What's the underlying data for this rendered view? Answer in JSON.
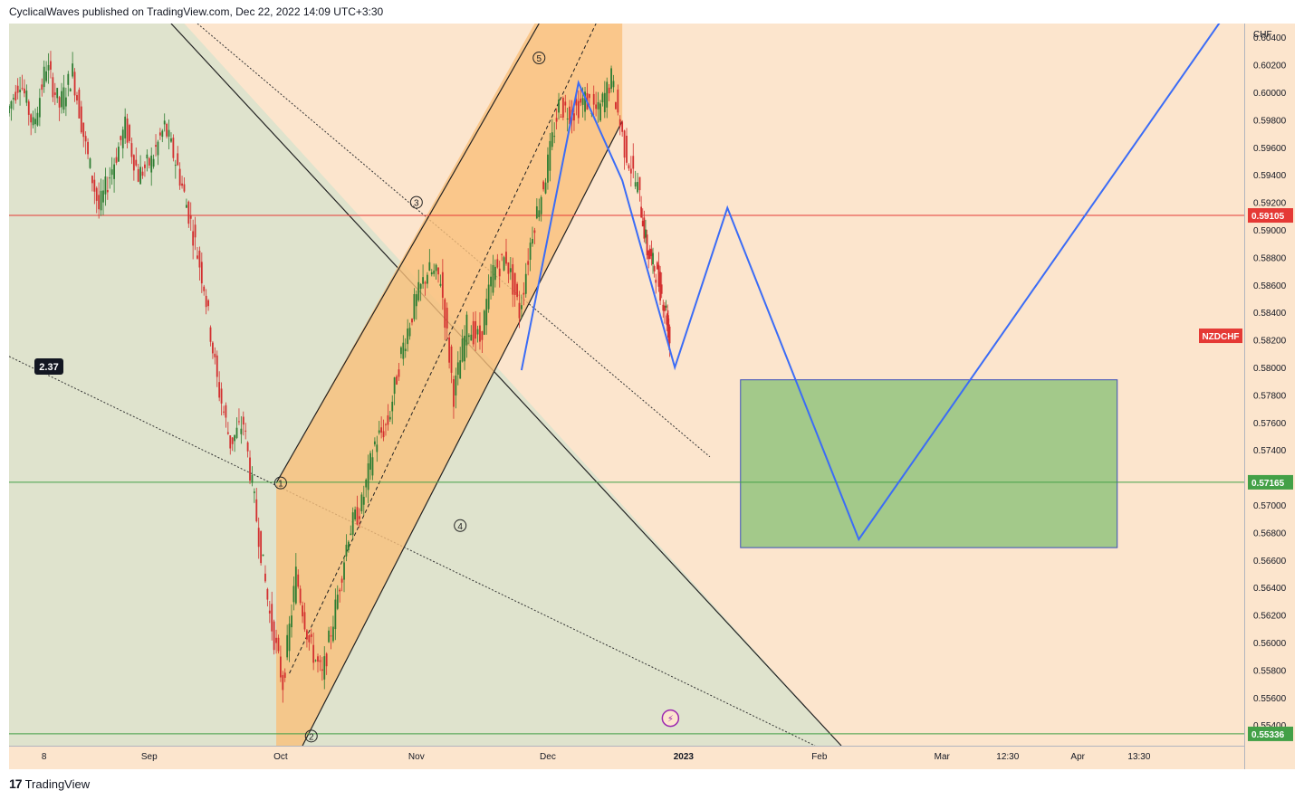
{
  "header": {
    "publisher_line": "CyclicalWaves published on TradingView.com, Dec 22, 2022 14:09 UTC+3:30"
  },
  "footer": {
    "brand": "TradingView",
    "logo_glyph": "17"
  },
  "colors": {
    "background": "#fce5cd",
    "wedge_fill": "#dde3cc",
    "channel_fill": "#f9bf7a",
    "target_box_fill": "#a3c98a",
    "projection_line": "#3b6cf6",
    "resistance_line": "#e53935",
    "support_line": "#43a047",
    "candle_up": "#2e7d32",
    "candle_down": "#d32f2f"
  },
  "chart_data": {
    "type": "candlestick",
    "symbol": "NZDCHF",
    "currency": "CHF",
    "y_ticks": [
      0.604,
      0.602,
      0.6,
      0.598,
      0.596,
      0.594,
      0.592,
      0.59,
      0.588,
      0.586,
      0.584,
      0.582,
      0.58,
      0.578,
      0.576,
      0.574,
      0.57,
      0.568,
      0.566,
      0.564,
      0.562,
      0.56,
      0.558,
      0.556,
      0.554
    ],
    "y_tick_labels": [
      "0.60400",
      "0.60200",
      "0.60000",
      "0.59800",
      "0.59600",
      "0.59400",
      "0.59200",
      "0.59000",
      "0.58800",
      "0.58600",
      "0.58400",
      "0.58200",
      "0.58000",
      "0.57800",
      "0.57600",
      "0.57400",
      "0.57000",
      "0.56800",
      "0.56600",
      "0.56400",
      "0.56200",
      "0.56000",
      "0.55800",
      "0.55600",
      "0.55400"
    ],
    "ylim": [
      0.5525,
      0.605
    ],
    "x_tick_labels": [
      {
        "label": "8",
        "day": 8
      },
      {
        "label": "Sep",
        "day": 32
      },
      {
        "label": "Oct",
        "day": 62
      },
      {
        "label": "Nov",
        "day": 93
      },
      {
        "label": "Dec",
        "day": 123
      },
      {
        "label": "2023",
        "day": 154
      },
      {
        "label": "Feb",
        "day": 185
      },
      {
        "label": "Mar",
        "day": 213
      },
      {
        "label": "12:30",
        "day": 228
      },
      {
        "label": "Apr",
        "day": 244
      },
      {
        "label": "13:30",
        "day": 258
      }
    ],
    "xlim": [
      0,
      282
    ],
    "price_path": [
      [
        0,
        0.5985
      ],
      [
        3,
        0.601
      ],
      [
        6,
        0.5975
      ],
      [
        9,
        0.602
      ],
      [
        12,
        0.599
      ],
      [
        15,
        0.6015
      ],
      [
        18,
        0.596
      ],
      [
        21,
        0.5915
      ],
      [
        24,
        0.5945
      ],
      [
        27,
        0.5975
      ],
      [
        30,
        0.594
      ],
      [
        33,
        0.595
      ],
      [
        36,
        0.5975
      ],
      [
        39,
        0.5945
      ],
      [
        42,
        0.5905
      ],
      [
        45,
        0.586
      ],
      [
        48,
        0.579
      ],
      [
        51,
        0.5745
      ],
      [
        54,
        0.576
      ],
      [
        57,
        0.569
      ],
      [
        60,
        0.562
      ],
      [
        63,
        0.557
      ],
      [
        66,
        0.565
      ],
      [
        69,
        0.56
      ],
      [
        72,
        0.5575
      ],
      [
        75,
        0.5625
      ],
      [
        78,
        0.568
      ],
      [
        81,
        0.57
      ],
      [
        84,
        0.5745
      ],
      [
        87,
        0.576
      ],
      [
        90,
        0.581
      ],
      [
        93,
        0.5845
      ],
      [
        96,
        0.587
      ],
      [
        99,
        0.5865
      ],
      [
        102,
        0.578
      ],
      [
        105,
        0.583
      ],
      [
        108,
        0.582
      ],
      [
        111,
        0.587
      ],
      [
        114,
        0.588
      ],
      [
        117,
        0.584
      ],
      [
        120,
        0.59
      ],
      [
        123,
        0.594
      ],
      [
        126,
        0.599
      ],
      [
        129,
        0.5985
      ],
      [
        132,
        0.5995
      ],
      [
        135,
        0.5985
      ],
      [
        138,
        0.601
      ],
      [
        141,
        0.596
      ],
      [
        144,
        0.593
      ],
      [
        146,
        0.5885
      ],
      [
        148,
        0.587
      ],
      [
        150,
        0.5845
      ],
      [
        151,
        0.582
      ]
    ],
    "annotations": {
      "resistance_price": 0.59105,
      "resistance_label": "0.59105",
      "support_price": 0.57165,
      "support_label": "0.57165",
      "bottom_price": 0.55336,
      "bottom_label": "0.55336",
      "symbol_tag": "NZDCHF",
      "ratio_label": "2.37",
      "wave_labels": [
        {
          "label": "1",
          "day": 62,
          "price": 0.5716
        },
        {
          "label": "2",
          "day": 69,
          "price": 0.5532
        },
        {
          "label": "3",
          "day": 93,
          "price": 0.592
        },
        {
          "label": "4",
          "day": 103,
          "price": 0.5685
        },
        {
          "label": "5",
          "day": 121,
          "price": 0.6025
        }
      ],
      "projection_path": [
        {
          "day": 117,
          "price": 0.5798
        },
        {
          "day": 130,
          "price": 0.6007
        },
        {
          "day": 140,
          "price": 0.5936
        },
        {
          "day": 152,
          "price": 0.58
        },
        {
          "day": 164,
          "price": 0.5916
        },
        {
          "day": 194,
          "price": 0.5675
        },
        {
          "day": 278,
          "price": 0.6058
        }
      ],
      "target_box": {
        "day_from": 167,
        "day_to": 253,
        "price_top": 0.5791,
        "price_bottom": 0.5669
      },
      "channel": {
        "lower": [
          {
            "day": 62,
            "price": 0.5715
          },
          {
            "day": 146,
            "price": 0.5985
          }
        ],
        "upper": [
          {
            "day": 62,
            "price": 0.5546
          },
          {
            "day": 146,
            "price": 0.5985
          }
        ]
      }
    }
  }
}
